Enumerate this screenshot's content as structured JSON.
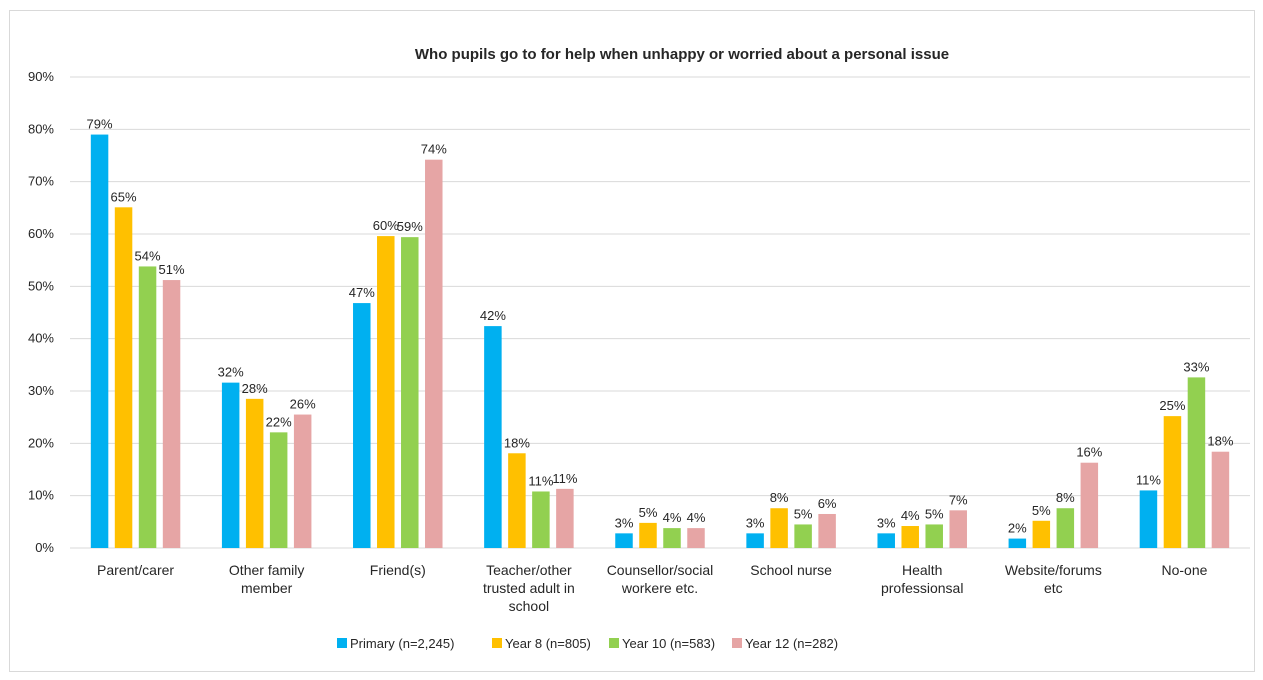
{
  "chart_data": {
    "type": "bar",
    "title": "Who pupils go to for help when unhappy or worried about a personal issue",
    "categories": [
      [
        "Parent/carer"
      ],
      [
        "Other family",
        "member"
      ],
      [
        "Friend(s)"
      ],
      [
        "Teacher/other",
        "trusted adult in",
        "school"
      ],
      [
        "Counsellor/social",
        "workere etc."
      ],
      [
        "School nurse"
      ],
      [
        "Health",
        "professionsal"
      ],
      [
        "Website/forums",
        "etc"
      ],
      [
        "No-one"
      ]
    ],
    "series": [
      {
        "name": "Primary (n=2,245)",
        "color": "#00b0f0",
        "values": [
          79,
          32,
          47,
          42,
          3,
          3,
          3,
          2,
          11
        ],
        "labels": [
          "79%",
          "32%",
          "47%",
          "42%",
          "3%",
          "3%",
          "3%",
          "2%",
          "11%"
        ],
        "plotted": [
          79,
          31.6,
          46.8,
          42.4,
          2.8,
          2.8,
          2.8,
          1.8,
          11
        ]
      },
      {
        "name": "Year 8 (n=805)",
        "color": "#ffc000",
        "values": [
          65,
          28,
          60,
          18,
          5,
          8,
          4,
          5,
          25
        ],
        "labels": [
          "65%",
          "28%",
          "60%",
          "18%",
          "5%",
          "8%",
          "4%",
          "5%",
          "25%"
        ],
        "plotted": [
          65.1,
          28.5,
          59.6,
          18.1,
          4.8,
          7.6,
          4.2,
          5.2,
          25.2
        ]
      },
      {
        "name": "Year 10 (n=583)",
        "color": "#92d050",
        "values": [
          54,
          22,
          59,
          11,
          4,
          5,
          5,
          8,
          33
        ],
        "labels": [
          "54%",
          "22%",
          "59%",
          "11%",
          "4%",
          "5%",
          "5%",
          "8%",
          "33%"
        ],
        "plotted": [
          53.8,
          22.1,
          59.4,
          10.8,
          3.8,
          4.5,
          4.5,
          7.6,
          32.6
        ]
      },
      {
        "name": "Year 12 (n=282)",
        "color": "#e6a5a5",
        "values": [
          51,
          26,
          74,
          11,
          4,
          6,
          7,
          16,
          18
        ],
        "labels": [
          "51%",
          "26%",
          "74%",
          "11%",
          "4%",
          "6%",
          "7%",
          "16%",
          "18%"
        ],
        "plotted": [
          51.2,
          25.5,
          74.2,
          11.3,
          3.8,
          6.5,
          7.2,
          16.3,
          18.4
        ]
      }
    ],
    "ylim": [
      0,
      90
    ],
    "ytick_values": [
      0,
      10,
      20,
      30,
      40,
      50,
      60,
      70,
      80,
      90
    ],
    "ytick_labels": [
      "0%",
      "10%",
      "20%",
      "30%",
      "40%",
      "50%",
      "60%",
      "70%",
      "80%",
      "90%"
    ],
    "grid": true,
    "legend_position": "bottom",
    "gridline_color": "#d9d9d9"
  }
}
